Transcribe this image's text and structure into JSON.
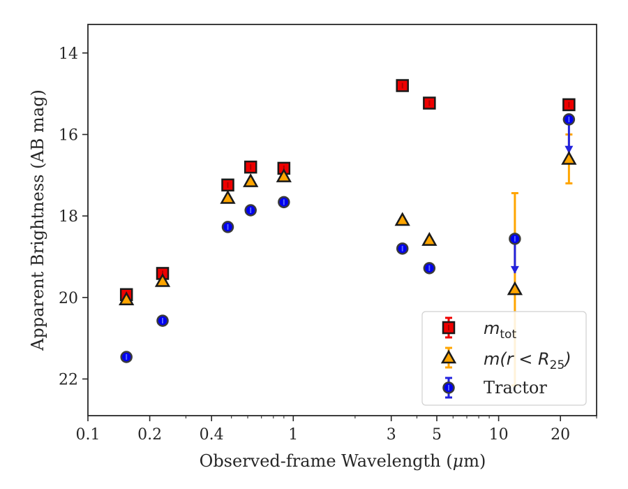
{
  "chart_data": {
    "type": "scatter",
    "xlabel_pre": "Observed-frame Wavelength (",
    "xlabel_mu": "μ",
    "xlabel_post": "m)",
    "ylabel": "Apparent Brightness (AB mag)",
    "xscale": "log",
    "xlim": [
      0.1,
      30
    ],
    "ylim": [
      22.9,
      13.3
    ],
    "y_inverted": true,
    "grid": false,
    "legend_position": "lower-right",
    "xticks": [
      {
        "value": 0.1,
        "label": "0.1"
      },
      {
        "value": 0.2,
        "label": "0.2"
      },
      {
        "value": 0.4,
        "label": "0.4"
      },
      {
        "value": 1,
        "label": "1"
      },
      {
        "value": 3,
        "label": "3"
      },
      {
        "value": 5,
        "label": "5"
      },
      {
        "value": 10,
        "label": "10"
      },
      {
        "value": 20,
        "label": "20"
      }
    ],
    "minor_xticks": [
      0.3,
      0.5,
      0.6,
      0.7,
      0.8,
      0.9,
      2,
      4,
      6,
      7,
      8,
      9,
      30
    ],
    "yticks": [
      {
        "value": 14,
        "label": "14"
      },
      {
        "value": 16,
        "label": "16"
      },
      {
        "value": 18,
        "label": "18"
      },
      {
        "value": 20,
        "label": "20"
      },
      {
        "value": 22,
        "label": "22"
      }
    ],
    "series": [
      {
        "name_main": "m",
        "name_sub": "tot",
        "marker": "square",
        "color": "#ee0000",
        "errcolor": "#ee0000",
        "points": [
          {
            "x": 0.154,
            "y": 19.93
          },
          {
            "x": 0.231,
            "y": 19.41
          },
          {
            "x": 0.48,
            "y": 17.24
          },
          {
            "x": 0.62,
            "y": 16.8
          },
          {
            "x": 0.9,
            "y": 16.83
          },
          {
            "x": 3.4,
            "y": 14.8
          },
          {
            "x": 4.6,
            "y": 15.23
          },
          {
            "x": 22,
            "y": 15.27
          }
        ]
      },
      {
        "name_main": "m",
        "name_paren": "(r < R",
        "name_sub": "25",
        "name_close": ")",
        "marker": "triangle",
        "color": "#ffa500",
        "errcolor": "#ffa500",
        "points": [
          {
            "x": 0.154,
            "y": 20.05
          },
          {
            "x": 0.231,
            "y": 19.6
          },
          {
            "x": 0.48,
            "y": 17.56
          },
          {
            "x": 0.62,
            "y": 17.15
          },
          {
            "x": 0.9,
            "y": 17.03
          },
          {
            "x": 3.4,
            "y": 18.1
          },
          {
            "x": 4.6,
            "y": 18.59
          },
          {
            "x": 12,
            "y": 19.8,
            "yerr_low": 2.36,
            "yerr_high": 2.36
          },
          {
            "x": 22,
            "y": 16.6,
            "yerr_low": 0.6,
            "yerr_high": 0.6
          }
        ]
      },
      {
        "name": "Tractor",
        "marker": "circle",
        "color": "#0000ee",
        "errcolor": "#2222dd",
        "points": [
          {
            "x": 0.154,
            "y": 21.46
          },
          {
            "x": 0.231,
            "y": 20.57
          },
          {
            "x": 0.48,
            "y": 18.27
          },
          {
            "x": 0.62,
            "y": 17.86
          },
          {
            "x": 0.9,
            "y": 17.66
          },
          {
            "x": 3.4,
            "y": 18.8
          },
          {
            "x": 4.6,
            "y": 19.28
          },
          {
            "x": 12,
            "y": 18.56,
            "upper_limit": 19.4
          },
          {
            "x": 22,
            "y": 15.63,
            "upper_limit": 16.45
          }
        ]
      }
    ]
  }
}
